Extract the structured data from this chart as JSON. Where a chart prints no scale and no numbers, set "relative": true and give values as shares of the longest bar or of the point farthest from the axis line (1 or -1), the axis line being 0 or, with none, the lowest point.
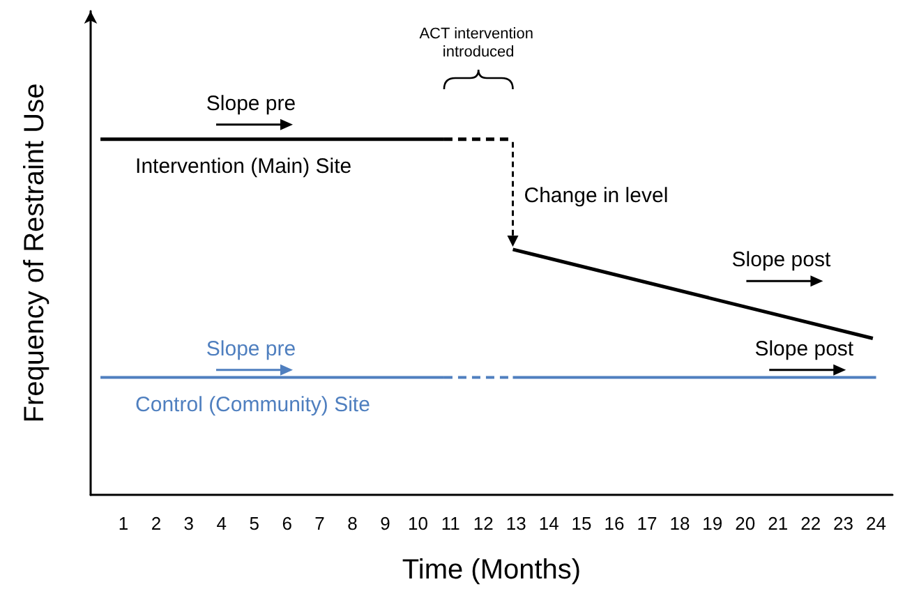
{
  "chart_data": {
    "type": "line",
    "relative": true,
    "xlabel": "Time (Months)",
    "ylabel": "Frequency of Restraint Use",
    "xlim": [
      0,
      24.5
    ],
    "xticks": [
      1,
      2,
      3,
      4,
      5,
      6,
      7,
      8,
      9,
      10,
      11,
      12,
      13,
      14,
      15,
      16,
      17,
      18,
      19,
      20,
      21,
      22,
      23,
      24
    ],
    "grid": false,
    "legend": "left",
    "marker": "none",
    "series": [
      {
        "name": "Intervention (Main) Site",
        "color": "#000000",
        "x": [
          0.3,
          10.8
        ],
        "values": [
          1,
          1
        ],
        "line_style": "solid"
      },
      {
        "color": "#000000",
        "x": [
          10.8,
          12.9
        ],
        "values": [
          1,
          1
        ],
        "line_style": "dashed"
      },
      {
        "color": "#000000",
        "x": [
          12.9,
          23.9
        ],
        "values": [
          0.69,
          0.44
        ],
        "line_style": "solid"
      },
      {
        "name": "Control (Community) Site",
        "color": "#4f7fbf",
        "x": [
          0.3,
          10.8
        ],
        "values": [
          0.33,
          0.33
        ],
        "line_style": "solid"
      },
      {
        "color": "#4f7fbf",
        "x": [
          10.8,
          12.9
        ],
        "values": [
          0.33,
          0.33
        ],
        "line_style": "dashed"
      },
      {
        "color": "#4f7fbf",
        "x": [
          12.9,
          24
        ],
        "values": [
          0.33,
          0.33
        ],
        "line_style": "solid"
      }
    ],
    "annotations": [
      "ACT intervention introduced",
      "Slope pre",
      "Change in level",
      "Slope post",
      "Slope pre",
      "Slope post"
    ]
  }
}
